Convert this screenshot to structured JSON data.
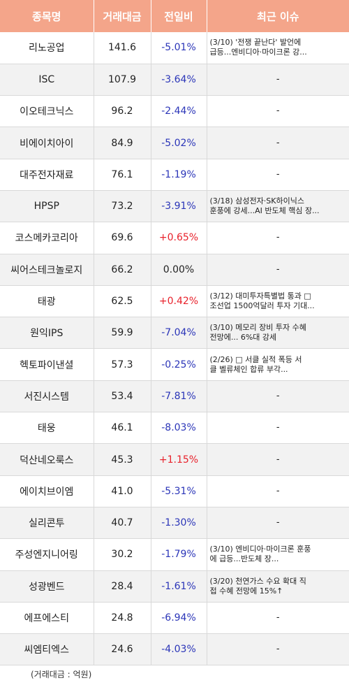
{
  "headers": {
    "name": "종목명",
    "volume": "거래대금",
    "change": "전일비",
    "news": "최근 이슈"
  },
  "rows": [
    {
      "name": "리노공업",
      "volume": "141.6",
      "change": "-5.01%",
      "dir": "down",
      "news1": "(3/10) '전쟁 끝난다' 발언에",
      "news2": "급등...엔비디아·마이크론 강..."
    },
    {
      "name": "ISC",
      "volume": "107.9",
      "change": "-3.64%",
      "dir": "down",
      "news1": "-",
      "news2": ""
    },
    {
      "name": "이오테크닉스",
      "volume": "96.2",
      "change": "-2.44%",
      "dir": "down",
      "news1": "-",
      "news2": ""
    },
    {
      "name": "비에이치아이",
      "volume": "84.9",
      "change": "-5.02%",
      "dir": "down",
      "news1": "-",
      "news2": ""
    },
    {
      "name": "대주전자재료",
      "volume": "76.1",
      "change": "-1.19%",
      "dir": "down",
      "news1": "-",
      "news2": ""
    },
    {
      "name": "HPSP",
      "volume": "73.2",
      "change": "-3.91%",
      "dir": "down",
      "news1": "(3/18) 삼성전자·SK하이닉스",
      "news2": "훈풍에 강세...AI 반도체 핵심 장..."
    },
    {
      "name": "코스메카코리아",
      "volume": "69.6",
      "change": "+0.65%",
      "dir": "up",
      "news1": "-",
      "news2": ""
    },
    {
      "name": "씨어스테크놀로지",
      "volume": "66.2",
      "change": "0.00%",
      "dir": "flat",
      "news1": "-",
      "news2": ""
    },
    {
      "name": "태광",
      "volume": "62.5",
      "change": "+0.42%",
      "dir": "up",
      "news1": "(3/12) 대미투자특별법 통과 □",
      "news2": "조선업 1500억달러 투자 기대..."
    },
    {
      "name": "원익IPS",
      "volume": "59.9",
      "change": "-7.04%",
      "dir": "down",
      "news1": "(3/10) 메모리 장비 투자 수혜",
      "news2": "전망에... 6%대 강세"
    },
    {
      "name": "헥토파이낸셜",
      "volume": "57.3",
      "change": "-0.25%",
      "dir": "down",
      "news1": "(2/26) □ 서클 실적 폭등 서",
      "news2": "클 벨류체인 합류 부각..."
    },
    {
      "name": "서진시스템",
      "volume": "53.4",
      "change": "-7.81%",
      "dir": "down",
      "news1": "-",
      "news2": ""
    },
    {
      "name": "태웅",
      "volume": "46.1",
      "change": "-8.03%",
      "dir": "down",
      "news1": "-",
      "news2": ""
    },
    {
      "name": "덕산네오룩스",
      "volume": "45.3",
      "change": "+1.15%",
      "dir": "up",
      "news1": "-",
      "news2": ""
    },
    {
      "name": "에이치브이엠",
      "volume": "41.0",
      "change": "-5.31%",
      "dir": "down",
      "news1": "-",
      "news2": ""
    },
    {
      "name": "실리콘투",
      "volume": "40.7",
      "change": "-1.30%",
      "dir": "down",
      "news1": "-",
      "news2": ""
    },
    {
      "name": "주성엔지니어링",
      "volume": "30.2",
      "change": "-1.79%",
      "dir": "down",
      "news1": "(3/10) 엔비디아·마이크론 훈풍",
      "news2": "에 급등...반도체 장..."
    },
    {
      "name": "성광벤드",
      "volume": "28.4",
      "change": "-1.61%",
      "dir": "down",
      "news1": "(3/20) 천연가스 수요 확대 직",
      "news2": "접 수혜 전망에 15%↑"
    },
    {
      "name": "에프에스티",
      "volume": "24.8",
      "change": "-6.94%",
      "dir": "down",
      "news1": "-",
      "news2": ""
    },
    {
      "name": "씨엠티엑스",
      "volume": "24.6",
      "change": "-4.03%",
      "dir": "down",
      "news1": "-",
      "news2": ""
    }
  ],
  "footnote": "(거래대금 : 억원)",
  "colors": {
    "header_bg": "#f4a58a",
    "up": "#e8212b",
    "down": "#2b35b8",
    "row_alt": "#f2f2f2"
  }
}
